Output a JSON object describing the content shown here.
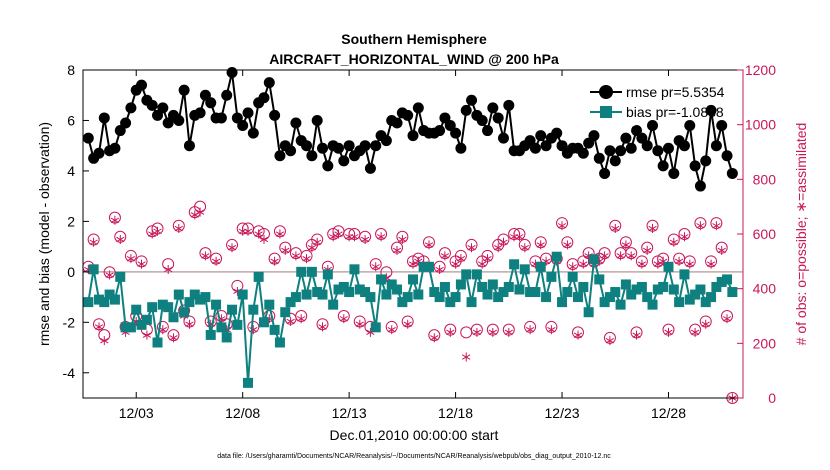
{
  "chart_data": {
    "type": "line",
    "title": "Southern Hemisphere",
    "subtitle": "AIRCRAFT_HORIZONTAL_WIND @ 200 hPa",
    "xlabel": "Dec.01,2010 00:00:00 start",
    "ylabel": "rmse and bias (model - observation)",
    "y2label": "# of obs: o=possible; ∗=assimilated",
    "footnote": "data file: /Users/gharamti/Documents/NCAR/Reanalysis/~/Documents/NCAR/Reanalysis/webpub/obs_diag_output_2010-12.nc",
    "xlim": [
      0.5,
      31.5
    ],
    "x_ticks": [
      3,
      8,
      13,
      18,
      23,
      28
    ],
    "x_tick_labels": [
      "12/03",
      "12/08",
      "12/13",
      "12/18",
      "12/23",
      "12/28"
    ],
    "ylim": [
      -5,
      8
    ],
    "y_ticks": [
      -4,
      -2,
      0,
      2,
      4,
      6,
      8
    ],
    "y2lim": [
      0,
      1200
    ],
    "y2_ticks": [
      0,
      200,
      400,
      600,
      800,
      1000,
      1200
    ],
    "zero_line": 0,
    "grid": false,
    "legend_position": "top-right",
    "colors": {
      "rmse": "#000000",
      "bias": "#0e8080",
      "obs": "#c8185a",
      "zero_line": "#c0a8a8"
    },
    "series": [
      {
        "name": "rmse pr=5.5354",
        "axis": "left",
        "marker": "circle",
        "x": [
          0.75,
          1.0,
          1.25,
          1.5,
          1.75,
          2.0,
          2.25,
          2.5,
          2.75,
          3.0,
          3.25,
          3.5,
          3.75,
          4.0,
          4.25,
          4.5,
          4.75,
          5.0,
          5.25,
          5.5,
          5.75,
          6.0,
          6.25,
          6.5,
          6.75,
          7.0,
          7.25,
          7.5,
          7.75,
          8.0,
          8.25,
          8.5,
          8.75,
          9.0,
          9.25,
          9.5,
          9.75,
          10.0,
          10.25,
          10.5,
          10.75,
          11.0,
          11.25,
          11.5,
          11.75,
          12.0,
          12.25,
          12.5,
          12.75,
          13.0,
          13.25,
          13.5,
          13.75,
          14.0,
          14.25,
          14.5,
          14.75,
          15.0,
          15.25,
          15.5,
          15.75,
          16.0,
          16.25,
          16.5,
          16.75,
          17.0,
          17.25,
          17.5,
          17.75,
          18.0,
          18.25,
          18.5,
          18.75,
          19.0,
          19.25,
          19.5,
          19.75,
          20.0,
          20.25,
          20.5,
          20.75,
          21.0,
          21.25,
          21.5,
          21.75,
          22.0,
          22.25,
          22.5,
          22.75,
          23.0,
          23.25,
          23.5,
          23.75,
          24.0,
          24.25,
          24.5,
          24.75,
          25.0,
          25.25,
          25.5,
          25.75,
          26.0,
          26.25,
          26.5,
          26.75,
          27.0,
          27.25,
          27.5,
          27.75,
          28.0,
          28.25,
          28.5,
          28.75,
          29.0,
          29.25,
          29.5,
          29.75,
          30.0,
          30.25,
          30.5,
          30.75,
          31.0
        ],
        "values": [
          5.3,
          4.5,
          4.7,
          6.1,
          4.8,
          4.9,
          5.6,
          5.9,
          6.5,
          7.2,
          7.4,
          6.8,
          6.6,
          6.2,
          6.5,
          5.9,
          6.2,
          6.0,
          7.2,
          5.0,
          6.2,
          6.3,
          7.0,
          6.7,
          6.1,
          6.1,
          7.0,
          7.9,
          6.1,
          5.8,
          6.3,
          5.5,
          6.7,
          6.9,
          7.5,
          6.2,
          4.6,
          5.0,
          4.8,
          5.9,
          5.2,
          5.0,
          4.6,
          6.0,
          4.9,
          4.2,
          5.0,
          4.9,
          4.4,
          5.0,
          4.6,
          4.8,
          5.0,
          4.1,
          5.0,
          5.4,
          5.2,
          6.0,
          5.9,
          6.3,
          6.2,
          5.4,
          6.5,
          5.6,
          5.5,
          5.5,
          5.6,
          6.1,
          5.8,
          5.5,
          4.9,
          6.4,
          6.8,
          6.2,
          6.0,
          5.6,
          6.5,
          6.1,
          5.3,
          6.6,
          4.8,
          4.8,
          5.0,
          5.2,
          4.9,
          5.4,
          5.0,
          5.3,
          5.5,
          5.0,
          4.7,
          4.9,
          4.9,
          4.7,
          5.1,
          5.4,
          4.5,
          3.9,
          4.8,
          4.4,
          4.8,
          5.3,
          4.9,
          5.6,
          5.3,
          5.0,
          5.8,
          4.8,
          4.2,
          4.9,
          3.9,
          5.2,
          5.0,
          5.8,
          4.2,
          3.4,
          4.4,
          6.4,
          5.0,
          5.8,
          4.6,
          3.9
        ]
      },
      {
        "name": "bias pr=-1.0838",
        "axis": "left",
        "marker": "square",
        "x": [
          0.75,
          1.0,
          1.25,
          1.5,
          1.75,
          2.0,
          2.25,
          2.5,
          2.75,
          3.0,
          3.25,
          3.5,
          3.75,
          4.0,
          4.25,
          4.5,
          4.75,
          5.0,
          5.25,
          5.5,
          5.75,
          6.0,
          6.25,
          6.5,
          6.75,
          7.0,
          7.25,
          7.5,
          7.75,
          8.0,
          8.25,
          8.5,
          8.75,
          9.0,
          9.25,
          9.5,
          9.75,
          10.0,
          10.25,
          10.5,
          10.75,
          11.0,
          11.25,
          11.5,
          11.75,
          12.0,
          12.25,
          12.5,
          12.75,
          13.0,
          13.25,
          13.5,
          13.75,
          14.0,
          14.25,
          14.5,
          14.75,
          15.0,
          15.25,
          15.5,
          15.75,
          16.0,
          16.25,
          16.5,
          16.75,
          17.0,
          17.25,
          17.5,
          17.75,
          18.0,
          18.25,
          18.5,
          18.75,
          19.0,
          19.25,
          19.5,
          19.75,
          20.0,
          20.25,
          20.5,
          20.75,
          21.0,
          21.25,
          21.5,
          21.75,
          22.0,
          22.25,
          22.5,
          22.75,
          23.0,
          23.25,
          23.5,
          23.75,
          24.0,
          24.25,
          24.5,
          24.75,
          25.0,
          25.25,
          25.5,
          25.75,
          26.0,
          26.25,
          26.5,
          26.75,
          27.0,
          27.25,
          27.5,
          27.75,
          28.0,
          28.25,
          28.5,
          28.75,
          29.0,
          29.25,
          29.5,
          29.75,
          30.0,
          30.25,
          30.5,
          30.75,
          31.0
        ],
        "values": [
          -1.2,
          0.1,
          -1.1,
          -1.2,
          -0.9,
          -1.1,
          -0.2,
          -2.2,
          -2.2,
          -1.5,
          -2.1,
          -1.9,
          -1.4,
          -2.8,
          -1.3,
          -1.4,
          -1.8,
          -0.9,
          -1.6,
          -1.2,
          -0.9,
          -1.1,
          -1.0,
          -2.5,
          -1.3,
          -2.2,
          -2.6,
          -1.5,
          -2.1,
          -0.9,
          -4.4,
          -1.5,
          -0.2,
          -2.0,
          -1.3,
          -2.3,
          -2.8,
          -1.6,
          -1.2,
          -1.0,
          0.0,
          -0.9,
          0.0,
          -0.8,
          -0.9,
          -0.1,
          -1.3,
          -0.7,
          -0.6,
          -0.8,
          0.1,
          -0.7,
          -0.8,
          -1.0,
          -2.2,
          -0.3,
          -0.9,
          -0.5,
          -0.7,
          -1.2,
          -1.0,
          -0.3,
          -0.9,
          0.2,
          0.2,
          -0.8,
          -1.0,
          -0.6,
          -1.2,
          -1.0,
          -0.5,
          -0.1,
          -1.2,
          -0.1,
          -0.6,
          -0.9,
          -0.5,
          -1.0,
          -0.8,
          -0.6,
          0.3,
          -0.7,
          0.1,
          -0.8,
          -0.8,
          0.2,
          -1.0,
          -0.2,
          0.6,
          -1.2,
          -0.8,
          -0.2,
          -1.0,
          -0.6,
          -1.6,
          0.5,
          -0.3,
          -1.2,
          -1.0,
          -0.8,
          -1.3,
          -0.5,
          -0.9,
          -0.7,
          -0.6,
          -1.0,
          -1.3,
          -0.7,
          -0.6,
          0.2,
          -0.7,
          -1.2,
          -0.1,
          -1.1,
          -0.9,
          -0.7,
          -1.2,
          -1.0,
          -0.6,
          -0.4,
          -0.3,
          -0.8
        ]
      },
      {
        "name": "# obs possible",
        "axis": "right",
        "marker": "circle-open",
        "x": [
          0.75,
          1.0,
          1.25,
          1.5,
          1.75,
          2.0,
          2.25,
          2.5,
          2.75,
          3.0,
          3.25,
          3.5,
          3.75,
          4.0,
          4.25,
          4.5,
          4.75,
          5.0,
          5.25,
          5.5,
          5.75,
          6.0,
          6.25,
          6.5,
          6.75,
          7.0,
          7.25,
          7.5,
          7.75,
          8.0,
          8.25,
          8.5,
          8.75,
          9.0,
          9.25,
          9.5,
          9.75,
          10.0,
          10.25,
          10.5,
          10.75,
          11.0,
          11.25,
          11.5,
          11.75,
          12.0,
          12.25,
          12.5,
          12.75,
          13.0,
          13.25,
          13.5,
          13.75,
          14.0,
          14.25,
          14.5,
          14.75,
          15.0,
          15.25,
          15.5,
          15.75,
          16.0,
          16.25,
          16.5,
          16.75,
          17.0,
          17.25,
          17.5,
          17.75,
          18.0,
          18.25,
          18.5,
          18.75,
          19.0,
          19.25,
          19.5,
          19.75,
          20.0,
          20.25,
          20.5,
          20.75,
          21.0,
          21.25,
          21.5,
          21.75,
          22.0,
          22.25,
          22.5,
          22.75,
          23.0,
          23.25,
          23.5,
          23.75,
          24.0,
          24.25,
          24.5,
          24.75,
          25.0,
          25.25,
          25.5,
          25.75,
          26.0,
          26.25,
          26.5,
          26.75,
          27.0,
          27.25,
          27.5,
          27.75,
          28.0,
          28.25,
          28.5,
          28.75,
          29.0,
          29.25,
          29.5,
          29.75,
          30.0,
          30.25,
          30.5,
          30.75,
          31.0
        ],
        "values": [
          480,
          580,
          270,
          230,
          460,
          660,
          590,
          260,
          520,
          300,
          500,
          250,
          610,
          620,
          260,
          490,
          230,
          630,
          320,
          280,
          680,
          700,
          530,
          280,
          510,
          300,
          270,
          560,
          410,
          620,
          620,
          260,
          610,
          600,
          300,
          510,
          610,
          550,
          290,
          530,
          300,
          520,
          560,
          580,
          270,
          480,
          600,
          610,
          300,
          600,
          600,
          280,
          590,
          260,
          490,
          600,
          460,
          260,
          550,
          590,
          280,
          500,
          510,
          500,
          570,
          230,
          480,
          530,
          250,
          500,
          520,
          240,
          560,
          250,
          500,
          520,
          250,
          560,
          580,
          250,
          600,
          600,
          560,
          260,
          500,
          570,
          510,
          260,
          510,
          640,
          570,
          490,
          240,
          500,
          530,
          500,
          510,
          530,
          220,
          630,
          530,
          570,
          530,
          240,
          500,
          550,
          630,
          500,
          510,
          250,
          580,
          510,
          600,
          500,
          250,
          640,
          280,
          500,
          640,
          550,
          300,
          0
        ]
      },
      {
        "name": "# obs assimilated",
        "axis": "right",
        "marker": "asterisk",
        "x": [
          0.75,
          1.0,
          1.25,
          1.5,
          1.75,
          2.0,
          2.25,
          2.5,
          2.75,
          3.0,
          3.25,
          3.5,
          3.75,
          4.0,
          4.25,
          4.5,
          4.75,
          5.0,
          5.25,
          5.5,
          5.75,
          6.0,
          6.25,
          6.5,
          6.75,
          7.0,
          7.25,
          7.5,
          7.75,
          8.0,
          8.25,
          8.5,
          8.75,
          9.0,
          9.25,
          9.5,
          9.75,
          10.0,
          10.25,
          10.5,
          10.75,
          11.0,
          11.25,
          11.5,
          11.75,
          12.0,
          12.25,
          12.5,
          12.75,
          13.0,
          13.25,
          13.5,
          13.75,
          14.0,
          14.25,
          14.5,
          14.75,
          15.0,
          15.25,
          15.5,
          15.75,
          16.0,
          16.25,
          16.5,
          16.75,
          17.0,
          17.25,
          17.5,
          17.75,
          18.0,
          18.25,
          18.5,
          18.75,
          19.0,
          19.25,
          19.5,
          19.75,
          20.0,
          20.25,
          20.5,
          20.75,
          21.0,
          21.25,
          21.5,
          21.75,
          22.0,
          22.25,
          22.5,
          22.75,
          23.0,
          23.25,
          23.5,
          23.75,
          24.0,
          24.25,
          24.5,
          24.75,
          25.0,
          25.25,
          25.5,
          25.75,
          26.0,
          26.25,
          26.5,
          26.75,
          27.0,
          27.25,
          27.5,
          27.75,
          28.0,
          28.25,
          28.5,
          28.75,
          29.0,
          29.25,
          29.5,
          29.75,
          30.0,
          30.25,
          30.5,
          30.75,
          31.0
        ],
        "values": [
          470,
          570,
          260,
          210,
          450,
          650,
          580,
          240,
          510,
          280,
          490,
          230,
          600,
          610,
          250,
          470,
          220,
          620,
          300,
          270,
          670,
          680,
          520,
          270,
          500,
          290,
          250,
          550,
          390,
          610,
          610,
          250,
          600,
          580,
          290,
          500,
          600,
          540,
          280,
          520,
          290,
          510,
          550,
          570,
          260,
          470,
          590,
          600,
          290,
          590,
          590,
          270,
          580,
          240,
          480,
          590,
          440,
          250,
          540,
          580,
          270,
          490,
          500,
          490,
          560,
          220,
          470,
          520,
          240,
          490,
          510,
          150,
          550,
          240,
          490,
          510,
          240,
          550,
          570,
          240,
          590,
          590,
          550,
          250,
          490,
          560,
          500,
          250,
          500,
          630,
          560,
          480,
          230,
          490,
          520,
          490,
          500,
          520,
          210,
          620,
          520,
          560,
          520,
          230,
          490,
          540,
          620,
          490,
          500,
          240,
          570,
          500,
          590,
          490,
          240,
          630,
          270,
          490,
          630,
          540,
          290,
          0
        ]
      }
    ]
  }
}
